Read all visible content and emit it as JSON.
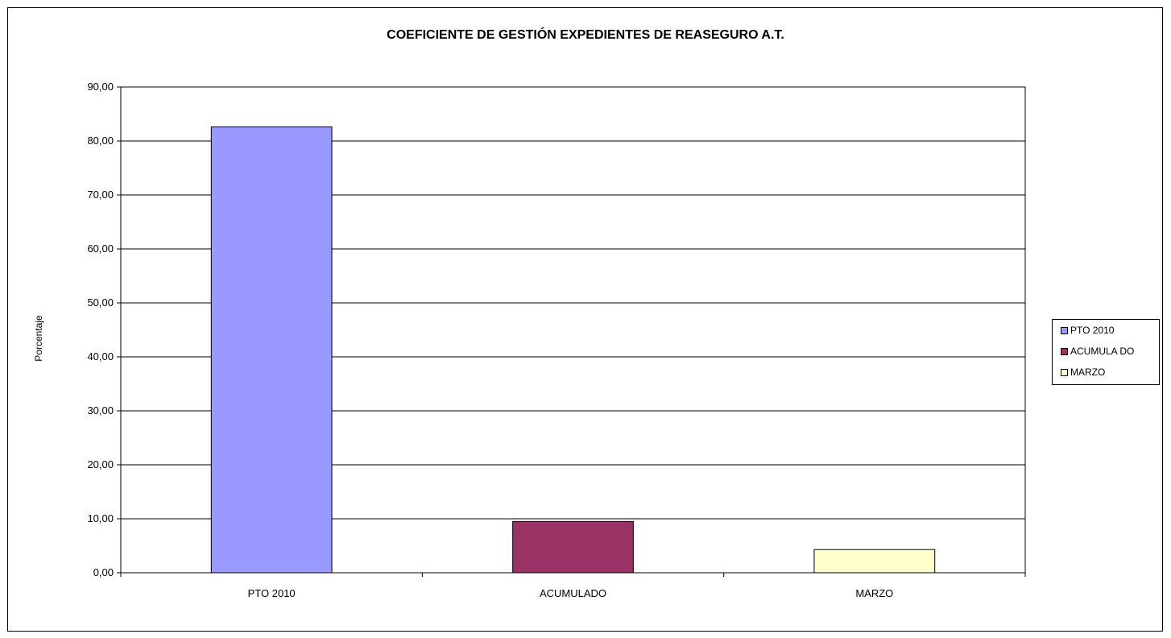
{
  "chart_data": {
    "type": "bar",
    "title": "COEFICIENTE DE GESTIÓN EXPEDIENTES DE REASEGURO A.T.",
    "xlabel": "",
    "ylabel": "Porcentaje",
    "categories": [
      "PTO 2010",
      "ACUMULADO",
      "MARZO"
    ],
    "values": [
      82.6,
      9.5,
      4.3
    ],
    "colors": [
      "#9999ff",
      "#993366",
      "#ffffcc"
    ],
    "ylim": [
      0,
      90
    ],
    "yticks": [
      "0,00",
      "10,00",
      "20,00",
      "30,00",
      "40,00",
      "50,00",
      "60,00",
      "70,00",
      "80,00",
      "90,00"
    ],
    "grid": true,
    "legend": {
      "position": "right",
      "entries": [
        "PTO  2010",
        "ACUMULA DO",
        "MARZO"
      ]
    }
  }
}
